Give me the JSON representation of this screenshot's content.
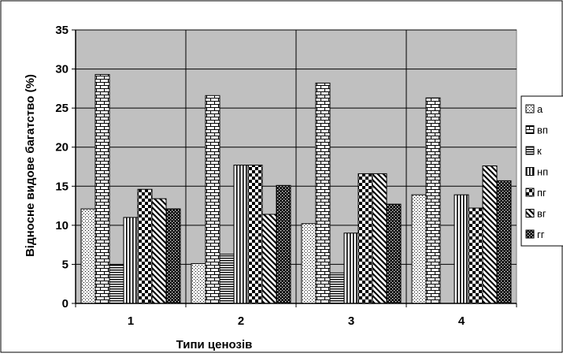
{
  "chart_data": {
    "type": "bar",
    "title": "",
    "xlabel": "Типи ценозів",
    "ylabel": "Відносне видове багатство (%)",
    "ylim": [
      0,
      35
    ],
    "yticks": [
      0,
      5,
      10,
      15,
      20,
      25,
      30,
      35
    ],
    "categories": [
      "1",
      "2",
      "3",
      "4"
    ],
    "grid": "horizontal",
    "legend_position": "right",
    "colors": {
      "plot_background": "#c0c0c0",
      "bar_stroke": "#000000",
      "bar_fill": "#ffffff",
      "pattern_ink": "#000000"
    },
    "series": [
      {
        "name": "а",
        "pattern": "dots",
        "values": [
          12.1,
          5.1,
          10.2,
          13.9
        ]
      },
      {
        "name": "вп",
        "pattern": "brick",
        "values": [
          29.3,
          26.6,
          28.2,
          26.3
        ]
      },
      {
        "name": "к",
        "pattern": "horizontal-lines",
        "values": [
          4.9,
          6.3,
          3.9,
          0
        ]
      },
      {
        "name": "нп",
        "pattern": "vertical-lines",
        "values": [
          11.0,
          17.7,
          9.0,
          13.9
        ]
      },
      {
        "name": "пг",
        "pattern": "checker",
        "values": [
          14.6,
          17.7,
          16.6,
          12.2
        ]
      },
      {
        "name": "вг",
        "pattern": "diagonal",
        "values": [
          13.4,
          11.4,
          16.6,
          17.6
        ]
      },
      {
        "name": "гг",
        "pattern": "dark-check",
        "values": [
          12.1,
          15.1,
          12.7,
          15.7
        ]
      }
    ]
  }
}
